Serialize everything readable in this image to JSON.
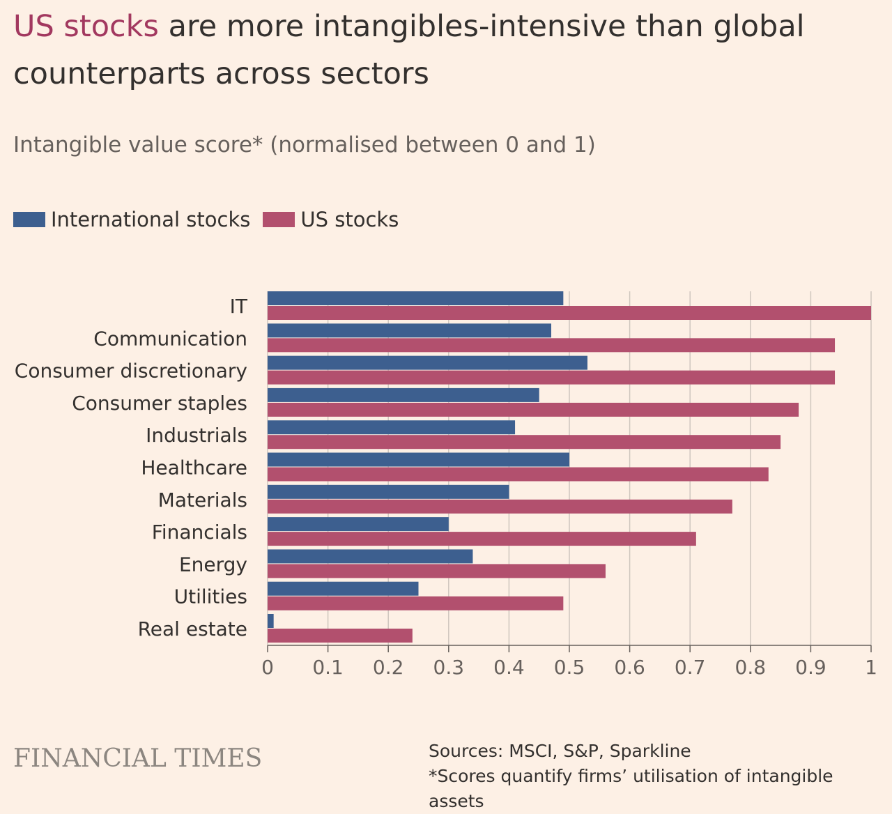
{
  "header": {
    "title_highlight": "US stocks",
    "title_rest": " are more intangibles-intensive than global counterparts across sectors",
    "subtitle": "Intangible value score* (normalised between 0 and 1)"
  },
  "colors": {
    "international": "#3d5f8f",
    "us": "#b2506e",
    "gridline": "#cfc6be",
    "highlight": "#a2385f"
  },
  "chart_data": {
    "type": "bar",
    "orientation": "horizontal",
    "categories": [
      "IT",
      "Communication",
      "Consumer discretionary",
      "Consumer staples",
      "Industrials",
      "Healthcare",
      "Materials",
      "Financials",
      "Energy",
      "Utilities",
      "Real estate"
    ],
    "series": [
      {
        "name": "International stocks",
        "values": [
          0.49,
          0.47,
          0.53,
          0.45,
          0.41,
          0.5,
          0.4,
          0.3,
          0.34,
          0.25,
          0.01
        ]
      },
      {
        "name": "US stocks",
        "values": [
          1.0,
          0.94,
          0.94,
          0.88,
          0.85,
          0.83,
          0.77,
          0.71,
          0.56,
          0.49,
          0.24
        ]
      }
    ],
    "x_ticks": [
      "0",
      "0.1",
      "0.2",
      "0.3",
      "0.4",
      "0.5",
      "0.6",
      "0.7",
      "0.8",
      "0.9",
      "1"
    ],
    "xlim": [
      0,
      1
    ],
    "grid": true,
    "legend": "top-left"
  },
  "footer": {
    "brand": "FINANCIAL TIMES",
    "sources": "Sources: MSCI, S&P, Sparkline",
    "note": "*Scores quantify firms’ utilisation of intangible assets"
  }
}
